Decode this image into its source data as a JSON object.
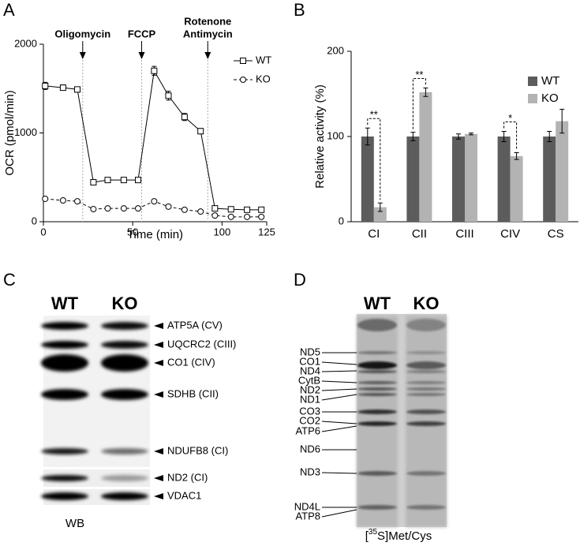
{
  "panels": {
    "a": "A",
    "b": "B",
    "c": "C",
    "d": "D"
  },
  "chart_data": [
    {
      "type": "line",
      "x_label": "Time (min)",
      "y_label": "OCR (pmol/min)",
      "xlim": [
        0,
        125
      ],
      "xticks": [
        0,
        50,
        100,
        125
      ],
      "ylim": [
        0,
        2000
      ],
      "yticks": [
        0,
        1000,
        2000
      ],
      "annotations": [
        {
          "lines": [
            "Oligomycin"
          ],
          "x": 22
        },
        {
          "lines": [
            "FCCP"
          ],
          "x": 55
        },
        {
          "lines": [
            "Rotenone",
            "Antimycin"
          ],
          "x": 92
        }
      ],
      "x": [
        1,
        11,
        19,
        28,
        36,
        45,
        53,
        62,
        70,
        79,
        88,
        96,
        105,
        114,
        122
      ],
      "series": [
        {
          "name": "WT",
          "color": "#000000",
          "marker": "square",
          "dash": false,
          "values": [
            1530,
            1510,
            1490,
            444,
            470,
            470,
            470,
            1700,
            1420,
            1180,
            1020,
            150,
            140,
            135,
            135
          ],
          "errors": [
            40,
            30,
            30,
            20,
            20,
            20,
            20,
            50,
            50,
            40,
            30,
            20,
            15,
            15,
            15
          ]
        },
        {
          "name": "KO",
          "color": "#000000",
          "marker": "circle",
          "dash": true,
          "values": [
            258,
            240,
            230,
            142,
            150,
            150,
            150,
            230,
            170,
            135,
            115,
            70,
            55,
            55,
            55
          ],
          "errors": [
            15,
            15,
            15,
            10,
            10,
            10,
            10,
            15,
            10,
            10,
            10,
            10,
            8,
            8,
            8
          ]
        }
      ],
      "legend": "right"
    },
    {
      "type": "bar",
      "y_label": "Relative activity (%)",
      "categories": [
        "CI",
        "CII",
        "CIII",
        "CIV",
        "CS"
      ],
      "ylim": [
        0,
        200
      ],
      "yticks": [
        0,
        100,
        200
      ],
      "series": [
        {
          "name": "WT",
          "color": "#5c5c5c",
          "values": [
            100,
            100,
            100,
            100,
            100
          ],
          "errors": [
            10,
            5,
            3,
            6,
            6
          ]
        },
        {
          "name": "KO",
          "color": "#b3b3b3",
          "values": [
            17,
            152,
            103,
            77,
            118
          ],
          "errors": [
            5,
            5,
            1,
            4,
            14
          ]
        }
      ],
      "significance": [
        {
          "category": 0,
          "text": "**"
        },
        {
          "category": 1,
          "text": "**"
        },
        {
          "category": 3,
          "text": "*"
        }
      ],
      "legend": "upper right"
    }
  ],
  "blot": {
    "lanes": [
      "WT",
      "KO"
    ],
    "bands": [
      "ATP5A (CV)",
      "UQCRC2 (CIII)",
      "CO1 (CIV)",
      "SDHB (CII)",
      "NDUFB8 (CI)",
      "ND2 (CI)",
      "VDAC1"
    ],
    "caption": "WB"
  },
  "gel": {
    "lanes": [
      "WT",
      "KO"
    ],
    "bands": [
      "ND5",
      "CO1",
      "ND4",
      "CytB",
      "ND2",
      "ND1",
      "CO3",
      "CO2",
      "ATP6",
      "ND6",
      "ND3",
      "ND4L",
      "ATP8"
    ],
    "caption": {
      "pre": "[",
      "sup": "35",
      "post": "S]Met/Cys"
    }
  }
}
